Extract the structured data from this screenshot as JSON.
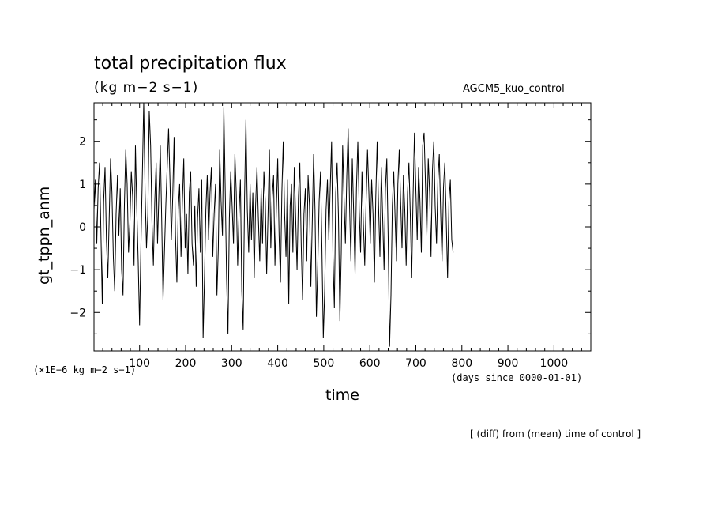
{
  "header": {
    "title": "total precipitation flux",
    "units": "(kg m−2 s−1)",
    "experiment": "AGCM5_kuo_control"
  },
  "annotations": {
    "scale_note": "(×1E−6 kg m−2 s−1)",
    "time_note": "(days since 0000-01-01)",
    "footnote": "[ (diff) from (mean) time of control ]"
  },
  "chart_data": {
    "type": "line",
    "title": "total precipitation flux",
    "xlabel": "time",
    "ylabel": "gt_tppn_anm",
    "xlim": [
      1,
      1080
    ],
    "ylim": [
      -2.9,
      2.9
    ],
    "x_ticks": [
      100,
      200,
      300,
      400,
      500,
      600,
      700,
      800,
      900,
      1000
    ],
    "y_ticks": [
      -2,
      -1,
      0,
      1,
      2
    ],
    "grid": false,
    "line_color": "#000000",
    "series": [
      {
        "x_start": 1,
        "x_step": 3,
        "values": [
          0.4,
          1.1,
          -0.4,
          0.9,
          1.5,
          -0.1,
          -1.8,
          0.6,
          1.4,
          -0.3,
          -1.2,
          0.2,
          1.6,
          0.8,
          -0.7,
          -1.5,
          0.3,
          1.2,
          -0.2,
          0.9,
          -1.0,
          -1.6,
          0.5,
          1.8,
          1.0,
          -0.6,
          0.1,
          1.3,
          0.7,
          -0.9,
          1.9,
          0.4,
          -0.8,
          -2.3,
          -0.4,
          1.2,
          2.9,
          0.8,
          -0.5,
          0.3,
          2.7,
          1.9,
          0.1,
          -0.9,
          0.6,
          1.5,
          -0.4,
          0.8,
          1.9,
          0.2,
          -1.7,
          -0.6,
          0.5,
          1.4,
          2.3,
          1.1,
          -0.3,
          0.7,
          2.1,
          -0.2,
          -1.3,
          0.4,
          1.0,
          -0.7,
          0.6,
          1.6,
          -0.5,
          0.3,
          -1.1,
          0.8,
          1.3,
          -0.4,
          -0.9,
          0.5,
          -1.4,
          0.2,
          0.9,
          -0.6,
          1.1,
          -2.6,
          -1.2,
          0.4,
          1.2,
          -0.3,
          0.8,
          1.4,
          -0.7,
          0.3,
          1.0,
          -1.6,
          -0.5,
          1.8,
          0.6,
          -0.2,
          2.8,
          0.9,
          -1.2,
          -2.5,
          0.2,
          1.3,
          0.5,
          -0.4,
          1.7,
          0.8,
          -0.9,
          0.3,
          1.1,
          -1.5,
          -2.4,
          0.7,
          2.5,
          0.4,
          -0.6,
          1.0,
          -0.3,
          0.8,
          -1.2,
          0.5,
          1.4,
          0.2,
          -0.8,
          0.9,
          -0.4,
          1.3,
          0.6,
          -1.1,
          0.3,
          1.8,
          -0.5,
          0.7,
          1.2,
          -0.9,
          0.4,
          1.6,
          -0.2,
          -1.3,
          0.8,
          2.0,
          0.3,
          -0.7,
          1.1,
          -1.8,
          0.5,
          1.0,
          -0.6,
          1.4,
          0.2,
          -1.0,
          0.7,
          1.5,
          -0.4,
          -1.7,
          0.3,
          0.9,
          -0.8,
          1.2,
          0.5,
          -1.4,
          0.1,
          1.7,
          0.4,
          -2.1,
          -0.9,
          0.6,
          1.3,
          -0.5,
          -2.6,
          -1.5,
          0.4,
          1.1,
          -0.3,
          0.9,
          2.0,
          -0.7,
          -1.9,
          0.8,
          1.5,
          0.2,
          -2.2,
          -0.6,
          1.9,
          0.7,
          -0.4,
          1.2,
          2.3,
          0.5,
          -0.8,
          1.6,
          0.3,
          -1.1,
          0.9,
          2.0,
          0.4,
          -0.6,
          1.3,
          0.1,
          -0.9,
          0.6,
          1.8,
          0.8,
          -0.4,
          1.1,
          0.3,
          -1.3,
          0.7,
          2.0,
          0.5,
          -0.7,
          1.4,
          0.2,
          -1.0,
          0.9,
          1.6,
          -0.3,
          -2.8,
          -1.6,
          0.5,
          1.3,
          0.2,
          -0.8,
          1.0,
          1.8,
          0.6,
          -0.5,
          1.2,
          0.4,
          -0.9,
          0.8,
          1.5,
          0.3,
          -1.2,
          0.7,
          2.2,
          0.9,
          -0.3,
          1.4,
          0.6,
          -0.6,
          1.9,
          2.2,
          1.0,
          -0.2,
          1.6,
          0.8,
          -0.7,
          1.3,
          2.0,
          0.5,
          -0.4,
          1.1,
          1.7,
          0.3,
          -0.8,
          0.9,
          1.5,
          0.2,
          -1.2,
          0.6,
          1.1,
          -0.3,
          -0.6
        ]
      }
    ]
  }
}
